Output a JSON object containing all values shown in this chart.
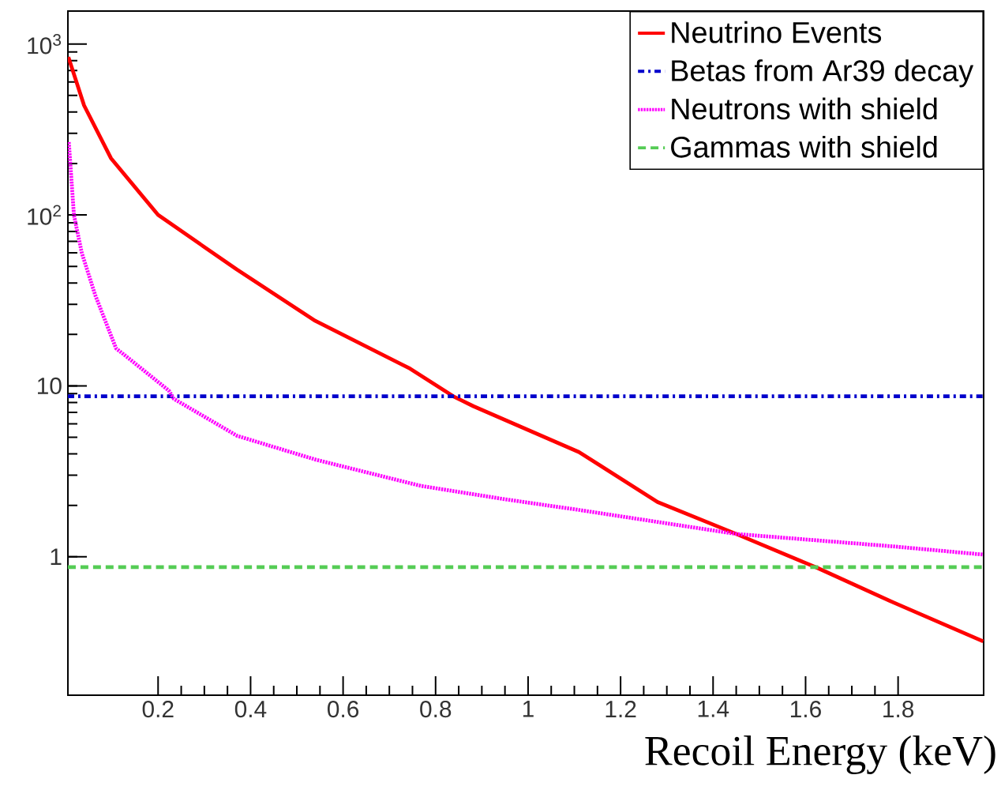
{
  "chart_data": {
    "type": "line",
    "xlabel": "Recoil Energy (keV)",
    "log": "y",
    "xlim": [
      0.005,
      1.985
    ],
    "ylim": [
      0.155,
      1560
    ],
    "xticks": [
      0.2,
      0.4,
      0.6,
      0.8,
      1,
      1.2,
      1.4,
      1.6,
      1.8
    ],
    "yticks": [
      1,
      10,
      {
        "value": 100,
        "label": "10$^{2}$"
      },
      {
        "value": 1000,
        "label": "10$^{3}$"
      }
    ],
    "grid": false,
    "legend": "top right",
    "marker": "none",
    "series": [
      {
        "name": "Neutrino Events",
        "color": "#ff0000",
        "line_style": "solid",
        "x": [
          0.006,
          0.04,
          0.098,
          0.2,
          0.37,
          0.54,
          0.745,
          0.838,
          0.882,
          1.11,
          1.28,
          1.45,
          1.626,
          1.79,
          1.984
        ],
        "values": [
          840,
          437,
          215,
          100,
          48,
          24,
          12.6,
          8.7,
          7.6,
          4.1,
          2.09,
          1.36,
          0.86,
          0.54,
          0.32
        ]
      },
      {
        "name": "Betas from Ar39 decay",
        "color": "#0000cc",
        "line_style": "dashdotted",
        "x": [
          0.005,
          1.985
        ],
        "values": [
          8.7,
          8.7
        ]
      },
      {
        "name": "Neutrons with shield",
        "color": "#ff00ff",
        "line_style": "dotted",
        "x": [
          0.007,
          0.018,
          0.035,
          0.064,
          0.109,
          0.223,
          0.234,
          0.371,
          0.541,
          0.768,
          0.95,
          1.11,
          1.45,
          1.79,
          1.984
        ],
        "values": [
          267,
          100,
          60,
          34,
          16.6,
          9.4,
          8.4,
          5.1,
          3.7,
          2.6,
          2.17,
          1.88,
          1.36,
          1.15,
          1.03
        ]
      },
      {
        "name": "Gammas with shield",
        "color": "#55cc55",
        "line_style": "dashed",
        "x": [
          0.005,
          1.985
        ],
        "values": [
          0.87,
          0.87
        ]
      }
    ]
  }
}
